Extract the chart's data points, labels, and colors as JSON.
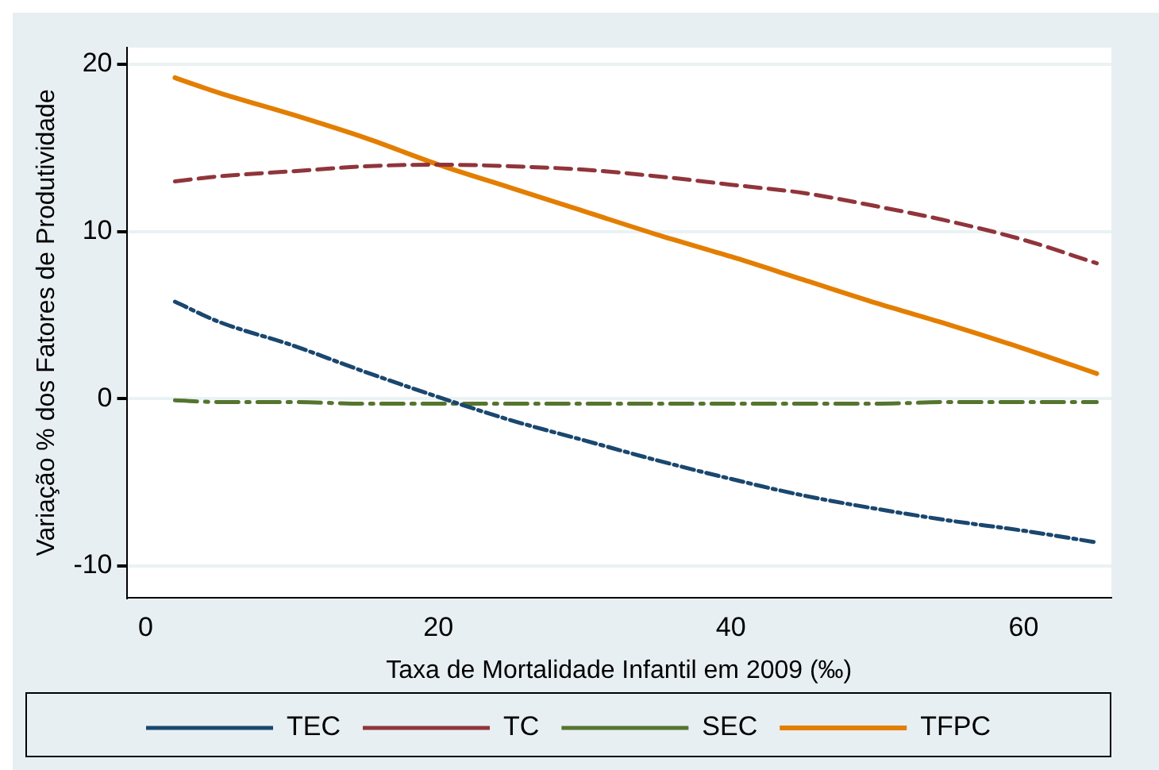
{
  "chart_data": {
    "type": "line",
    "xlabel": "Taxa de Mortalidade Infantil em 2009 (‰)",
    "ylabel": "Variação % dos Fatores de Produtividade",
    "x": [
      2,
      5,
      10,
      15,
      20,
      25,
      30,
      35,
      40,
      45,
      50,
      55,
      60,
      65
    ],
    "series": [
      {
        "name": "TEC",
        "color": "#1a476f",
        "line_style": "dashdot",
        "values": [
          5.8,
          4.6,
          3.2,
          1.6,
          0.1,
          -1.3,
          -2.5,
          -3.7,
          -4.8,
          -5.8,
          -6.6,
          -7.3,
          -7.9,
          -8.6
        ]
      },
      {
        "name": "TC",
        "color": "#90353b",
        "line_style": "dashed",
        "values": [
          13.0,
          13.3,
          13.6,
          13.9,
          14.0,
          13.9,
          13.7,
          13.3,
          12.8,
          12.3,
          11.5,
          10.6,
          9.5,
          8.1
        ]
      },
      {
        "name": "SEC",
        "color": "#55752f",
        "line_style": "longdashdot",
        "values": [
          -0.1,
          -0.2,
          -0.2,
          -0.3,
          -0.3,
          -0.3,
          -0.3,
          -0.3,
          -0.3,
          -0.3,
          -0.3,
          -0.2,
          -0.2,
          -0.2
        ]
      },
      {
        "name": "TFPC",
        "color": "#e37e00",
        "line_style": "solid",
        "values": [
          19.2,
          18.3,
          17.0,
          15.6,
          14.0,
          12.6,
          11.2,
          9.8,
          8.5,
          7.1,
          5.7,
          4.4,
          3.0,
          1.5
        ]
      }
    ],
    "xlim": [
      -1.3,
      66
    ],
    "xticks": [
      0,
      20,
      40,
      60
    ],
    "ylim": [
      -11.9,
      21
    ],
    "yticks": [
      -10,
      0,
      10,
      20
    ],
    "grid": "y",
    "legend": "bottom",
    "marker": "none"
  }
}
